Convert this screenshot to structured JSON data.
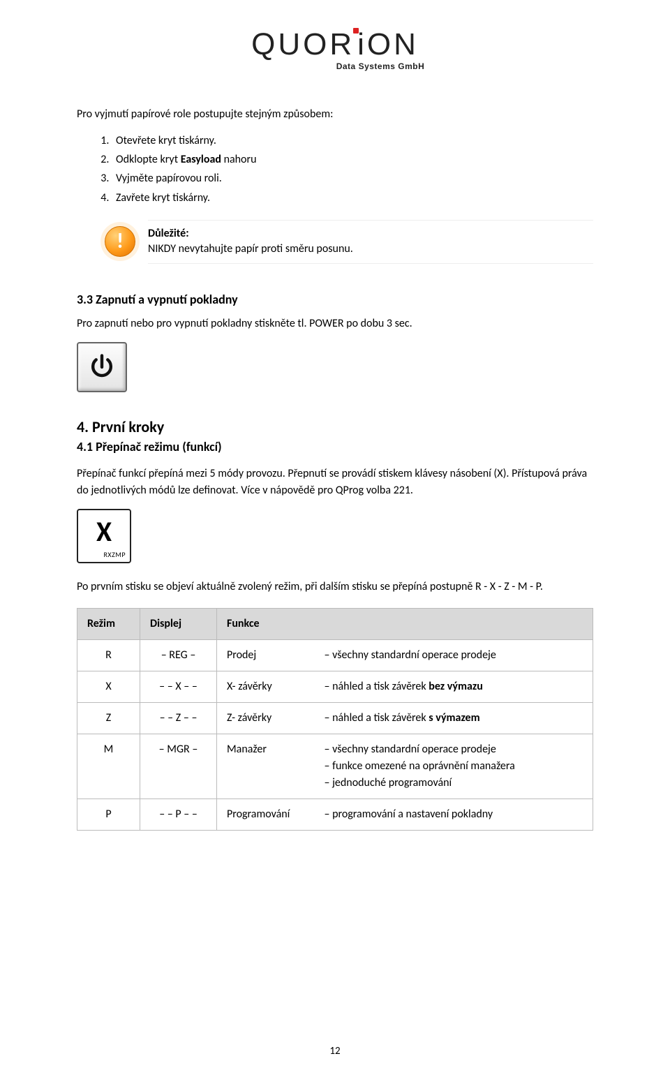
{
  "logo": {
    "brand": "QUORiON",
    "brand_left": "QUOR",
    "brand_right": "ON",
    "sub": "Data Systems GmbH"
  },
  "intro": "Pro vyjmutí papírové role postupujte stejným způsobem:",
  "steps": [
    "Otevřete kryt tiskárny.",
    "Odklopte kryt <b>Easyload</b> nahoru",
    "Vyjměte papírovou roli.",
    "Zavřete kryt tiskárny."
  ],
  "note": {
    "label": "Důležité:",
    "text": "NIKDY nevytahujte papír proti směru posunu."
  },
  "sec33": {
    "title": "3.3 Zapnutí a vypnutí pokladny",
    "text": "Pro zapnutí nebo pro vypnutí pokladny stiskněte tl. POWER po dobu 3 sec."
  },
  "sec4": {
    "title": "4. První kroky"
  },
  "sec41": {
    "title": "4.1 Přepínač režimu (funkcí)",
    "text": "Přepínač funkcí přepíná mezi 5 módy provozu. Přepnutí se provádí stiskem klávesy násobení (X). Přístupová práva do jednotlivých módů lze definovat. Více v nápovědě pro QProg volba 221."
  },
  "key_x": {
    "big": "X",
    "small": "RXZMP"
  },
  "after_key": "Po prvním stisku se objeví aktuálně zvolený režim, při dalším stisku se přepíná postupně R - X - Z - M - P.",
  "table": {
    "headers": [
      "Režim",
      "Displej",
      "Funkce"
    ],
    "rows": [
      {
        "rezim": "R",
        "displej": "– REG –",
        "func_label": "Prodej",
        "func_desc": [
          "– všechny standardní operace prodeje"
        ]
      },
      {
        "rezim": "X",
        "displej": "– – X – –",
        "func_label": "X- závěrky",
        "func_desc": [
          "– náhled a tisk závěrek <b>bez výmazu</b>"
        ]
      },
      {
        "rezim": "Z",
        "displej": "– – Z – –",
        "func_label": "Z- závěrky",
        "func_desc": [
          "– náhled a tisk závěrek <b>s výmazem</b>"
        ]
      },
      {
        "rezim": "M",
        "displej": "– MGR –",
        "func_label": "Manažer",
        "func_desc": [
          "– všechny standardní operace prodeje",
          "– funkce omezené na oprávnění manažera",
          "– jednoduché programování"
        ]
      },
      {
        "rezim": "P",
        "displej": "– – P – –",
        "func_label": "Programování",
        "func_desc": [
          "– programování a nastavení pokladny"
        ]
      }
    ]
  },
  "page_number": "12"
}
